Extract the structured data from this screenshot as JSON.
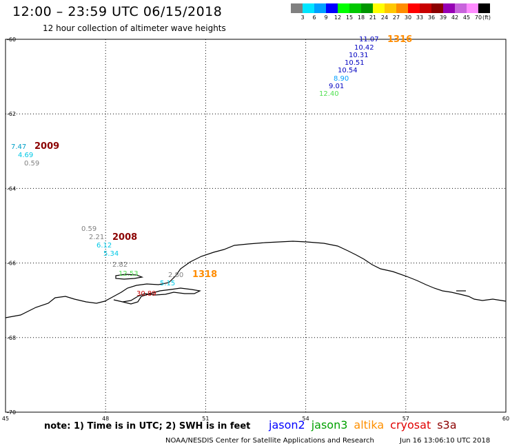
{
  "header": {
    "title": "12:00 – 23:59 UTC 06/15/2018",
    "subtitle": "12 hour collection of altimeter wave heights"
  },
  "legend": {
    "colors": [
      "#808080",
      "#00e5ff",
      "#00a0ff",
      "#0000ff",
      "#00ff00",
      "#00c800",
      "#009600",
      "#ffff00",
      "#ffc800",
      "#ff8c00",
      "#ff0000",
      "#c80000",
      "#8b0000",
      "#9600b4",
      "#c864dc",
      "#ff8cff",
      "#000000"
    ],
    "labels": [
      "3",
      "6",
      "9",
      "12",
      "15",
      "18",
      "21",
      "24",
      "27",
      "30",
      "33",
      "36",
      "39",
      "42",
      "45",
      "70",
      "(ft)"
    ]
  },
  "map": {
    "lon_range": [
      45,
      60
    ],
    "lat_range": [
      -70,
      -60
    ],
    "lon_ticks": [
      "45",
      "48",
      "51",
      "54",
      "57",
      "60"
    ],
    "lat_ticks": [
      "-60",
      "-62",
      "-64",
      "-66",
      "-68",
      "-70"
    ],
    "grid": "dotted"
  },
  "tracks": [
    {
      "label": "1316",
      "label_color": "#ff8c00",
      "points": [
        {
          "v": "11.07",
          "c": "#0000c0"
        },
        {
          "v": "10.42",
          "c": "#0000c0"
        },
        {
          "v": "10.31",
          "c": "#0000c0"
        },
        {
          "v": "10.51",
          "c": "#0000c0"
        },
        {
          "v": "10.54",
          "c": "#0000c0"
        },
        {
          "v": "8.90",
          "c": "#00a0ff"
        },
        {
          "v": "9.01",
          "c": "#0000c0"
        },
        {
          "v": "12.40",
          "c": "#50e050"
        }
      ]
    },
    {
      "label": "2009",
      "label_color": "#8b0000",
      "points": [
        {
          "v": "7.47",
          "c": "#00a0c8"
        },
        {
          "v": "4.69",
          "c": "#00c8e6"
        },
        {
          "v": "0.59",
          "c": "#808080"
        }
      ]
    },
    {
      "label": "2008",
      "label_color": "#8b0000",
      "points": [
        {
          "v": "0.59",
          "c": "#808080"
        },
        {
          "v": "2.21",
          "c": "#808080"
        },
        {
          "v": "6.12",
          "c": "#00c8e6"
        },
        {
          "v": "5.34",
          "c": "#00c8e6"
        },
        {
          "v": "2.82",
          "c": "#808080"
        },
        {
          "v": "12.53",
          "c": "#50e050"
        },
        {
          "v": "30.89",
          "c": "#c80000"
        }
      ]
    },
    {
      "label": "1318",
      "label_color": "#ff8c00",
      "points": [
        {
          "v": "2.80",
          "c": "#808080"
        },
        {
          "v": "5.15",
          "c": "#00c8e6"
        }
      ]
    }
  ],
  "footer": {
    "note": "note: 1) Time is in UTC; 2) SWH is in feet",
    "satellites": [
      {
        "name": "jason2",
        "color": "#0000ff"
      },
      {
        "name": "jason3",
        "color": "#00a000"
      },
      {
        "name": "altika",
        "color": "#ff9000"
      },
      {
        "name": "cryosat",
        "color": "#e00000"
      },
      {
        "name": "s3a",
        "color": "#8b0000"
      }
    ],
    "credit": "NOAA/NESDIS Center for Satellite Applications and Research",
    "timestamp": "Jun 16 13:06:10 UTC 2018"
  }
}
